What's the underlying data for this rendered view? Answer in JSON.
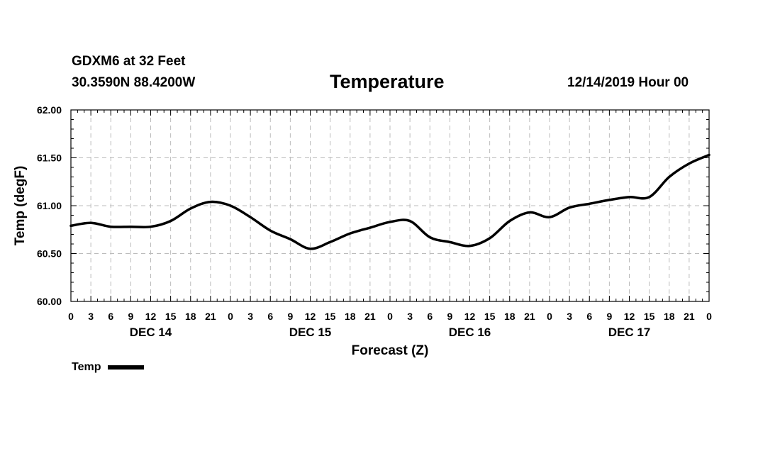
{
  "header": {
    "station": "GDXM6 at 32 Feet",
    "coords": "30.3590N 88.4200W",
    "datetime": "12/14/2019 Hour 00"
  },
  "legend": {
    "label": "Temp"
  },
  "colors": {
    "line": "#000000",
    "grid": "#bbbbbb",
    "axis": "#000000"
  },
  "chart_data": {
    "type": "line",
    "title": "Temperature",
    "xlabel": "Forecast (Z)",
    "ylabel": "Temp (degF)",
    "xlim": [
      0,
      96
    ],
    "ylim": [
      60.0,
      62.0
    ],
    "y_ticks": [
      60.0,
      60.5,
      61.0,
      61.5,
      62.0
    ],
    "y_tick_labels": [
      "60.00",
      "60.50",
      "61.00",
      "61.50",
      "62.00"
    ],
    "x_ticks": [
      0,
      3,
      6,
      9,
      12,
      15,
      18,
      21,
      24,
      27,
      30,
      33,
      36,
      39,
      42,
      45,
      48,
      51,
      54,
      57,
      60,
      63,
      66,
      69,
      72,
      75,
      78,
      81,
      84,
      87,
      90,
      93,
      96
    ],
    "x_tick_labels": [
      "0",
      "3",
      "6",
      "9",
      "12",
      "15",
      "18",
      "21",
      "0",
      "3",
      "6",
      "9",
      "12",
      "15",
      "18",
      "21",
      "0",
      "3",
      "6",
      "9",
      "12",
      "15",
      "18",
      "21",
      "0",
      "3",
      "6",
      "9",
      "12",
      "15",
      "18",
      "21",
      "0"
    ],
    "day_labels": [
      {
        "x": 12,
        "label": "DEC 14"
      },
      {
        "x": 36,
        "label": "DEC 15"
      },
      {
        "x": 60,
        "label": "DEC 16"
      },
      {
        "x": 84,
        "label": "DEC 17"
      }
    ],
    "grid": true,
    "series": [
      {
        "name": "Temp",
        "x": [
          0,
          3,
          6,
          9,
          12,
          15,
          18,
          21,
          24,
          27,
          30,
          33,
          36,
          39,
          42,
          45,
          48,
          51,
          54,
          57,
          60,
          63,
          66,
          69,
          72,
          75,
          78,
          81,
          84,
          87,
          90,
          93,
          96
        ],
        "values": [
          60.79,
          60.82,
          60.78,
          60.78,
          60.78,
          60.84,
          60.97,
          61.04,
          61.0,
          60.88,
          60.74,
          60.65,
          60.55,
          60.62,
          60.71,
          60.77,
          60.83,
          60.84,
          60.67,
          60.62,
          60.58,
          60.66,
          60.84,
          60.93,
          60.88,
          60.98,
          61.02,
          61.06,
          61.09,
          61.09,
          61.3,
          61.44,
          61.53
        ]
      }
    ]
  }
}
